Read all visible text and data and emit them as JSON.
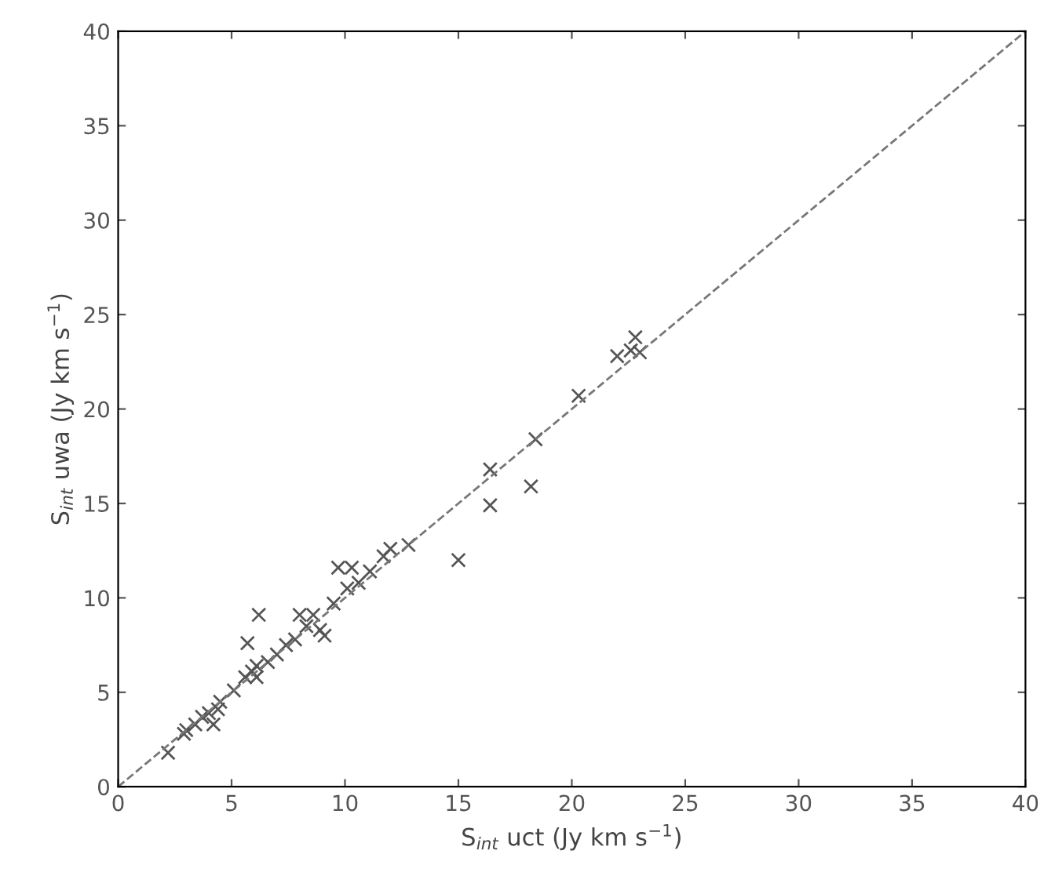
{
  "chart_data": {
    "type": "scatter",
    "xlabel": "S$_{int}$ uct (Jy km s$^{−1}$)",
    "ylabel": "S$_{int}$ uwa (Jy km s$^{−1}$)",
    "xlim": [
      0,
      40
    ],
    "ylim": [
      0,
      40
    ],
    "xticks": [
      0,
      5,
      10,
      15,
      20,
      25,
      30,
      35,
      40
    ],
    "yticks": [
      0,
      5,
      10,
      15,
      20,
      25,
      30,
      35,
      40
    ],
    "grid": false,
    "legend": false,
    "series": [
      {
        "color": "#555555",
        "marker": "cross",
        "x": [
          2.2,
          2.9,
          3.0,
          3.4,
          3.7,
          4.0,
          4.4,
          4.2,
          4.5,
          5.1,
          5.6,
          5.7,
          5.9,
          6.1,
          6.2,
          6.1,
          6.6,
          7.0,
          7.4,
          7.8,
          8.0,
          8.3,
          8.6,
          8.9,
          9.1,
          9.5,
          9.7,
          10.1,
          10.3,
          10.6,
          11.1,
          11.7,
          12.0,
          12.8,
          15.0,
          16.4,
          16.4,
          18.2,
          18.4,
          20.3,
          22.0,
          22.6,
          22.8,
          23.0
        ],
        "values": [
          1.8,
          2.8,
          3.0,
          3.3,
          3.7,
          3.9,
          4.1,
          3.3,
          4.5,
          5.1,
          5.8,
          7.6,
          6.1,
          6.4,
          9.1,
          5.8,
          6.6,
          7.0,
          7.5,
          7.8,
          9.1,
          8.5,
          9.1,
          8.3,
          8.0,
          9.7,
          11.6,
          10.5,
          11.6,
          10.8,
          11.4,
          12.2,
          12.6,
          12.8,
          12.0,
          14.9,
          16.8,
          15.9,
          18.4,
          20.7,
          22.8,
          23.1,
          23.8,
          23.0
        ]
      },
      {
        "type": "line",
        "color": "#777777",
        "marker": "none",
        "line_style": "dashed",
        "x": [
          0,
          40
        ],
        "values": [
          0,
          40
        ]
      }
    ]
  }
}
